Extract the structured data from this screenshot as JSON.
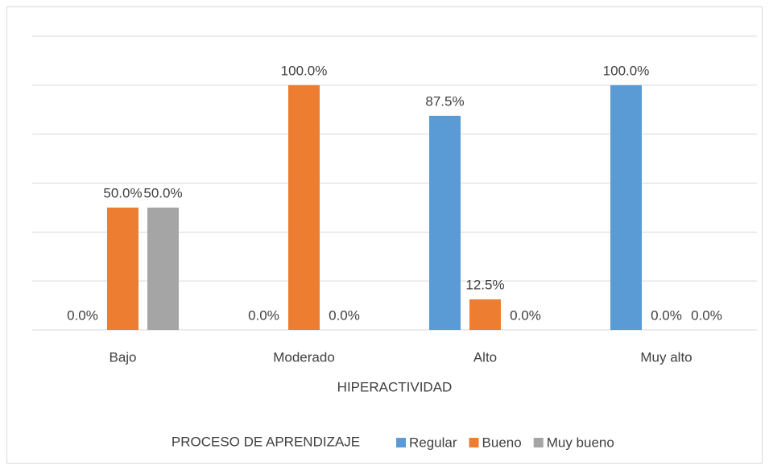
{
  "chart_data": {
    "type": "bar",
    "categories": [
      "Bajo",
      "Moderado",
      "Alto",
      "Muy alto"
    ],
    "series": [
      {
        "name": "Regular",
        "color": "#5b9bd5",
        "values": [
          0,
          0,
          87.5,
          100
        ],
        "value_labels": [
          "0.0%",
          "0.0%",
          "87.5%",
          "100.0%"
        ]
      },
      {
        "name": "Bueno",
        "color": "#ed7d31",
        "values": [
          50,
          100,
          12.5,
          0
        ],
        "value_labels": [
          "50.0%",
          "100.0%",
          "12.5%",
          "0.0%"
        ]
      },
      {
        "name": "Muy bueno",
        "color": "#a5a5a5",
        "values": [
          50,
          0,
          0,
          0
        ],
        "value_labels": [
          "50.0%",
          "0.0%",
          "0.0%",
          "0.0%"
        ]
      }
    ],
    "xlabel": "HIPERACTIVIDAD",
    "legend_title": "PROCESO DE APRENDIZAJE",
    "legend": "bottom",
    "ylim": [
      0,
      120
    ],
    "yticks": [
      0,
      20,
      40,
      60,
      80,
      100,
      120
    ],
    "grid": true
  }
}
